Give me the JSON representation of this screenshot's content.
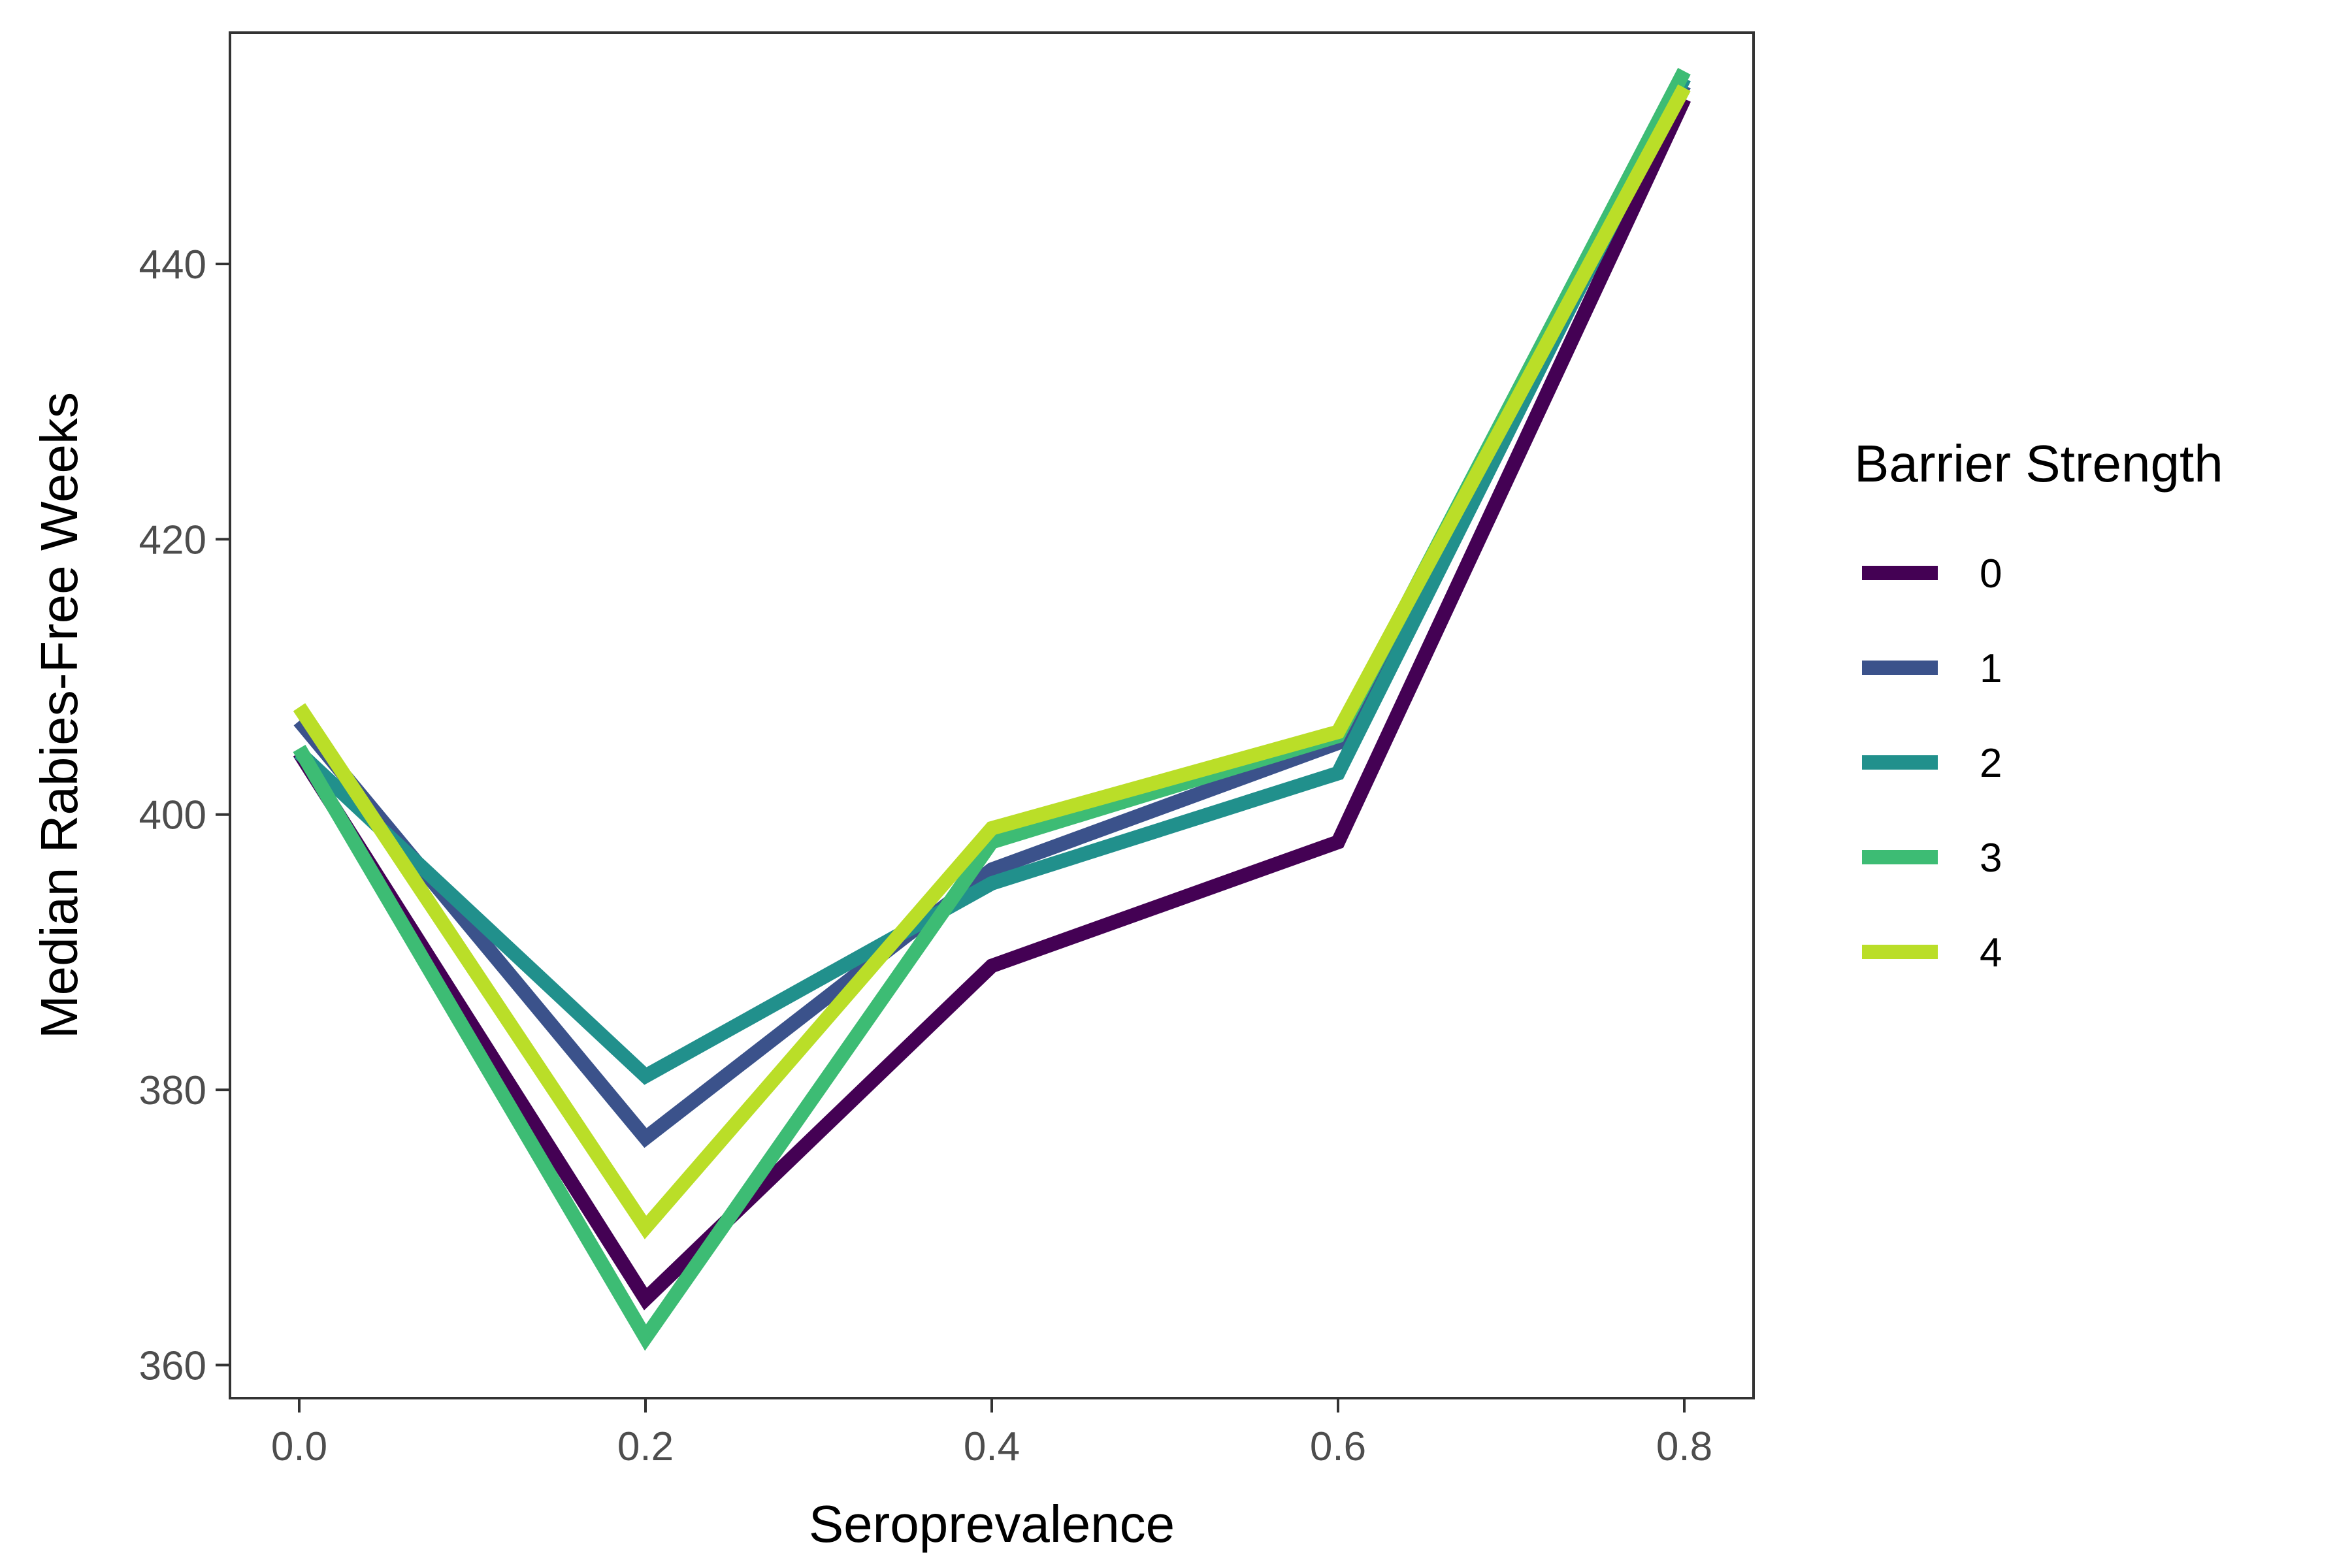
{
  "chart_data": {
    "type": "line",
    "xlabel": "Seroprevalence",
    "ylabel": "Median Rabies-Free Weeks",
    "x": [
      0.0,
      0.2,
      0.4,
      0.6,
      0.8
    ],
    "x_ticks": [
      "0.0",
      "0.2",
      "0.4",
      "0.6",
      "0.8"
    ],
    "y_ticks": [
      360,
      380,
      400,
      420,
      440
    ],
    "xlim": [
      -0.04,
      0.84
    ],
    "ylim": [
      357.6,
      456.8
    ],
    "grid": false,
    "legend": {
      "title": "Barrier Strength",
      "position": "right"
    },
    "series": [
      {
        "name": "0",
        "color": "#440154",
        "values": [
          404.5,
          364.8,
          389.0,
          398.0,
          452.0
        ]
      },
      {
        "name": "1",
        "color": "#3B528B",
        "values": [
          406.8,
          376.5,
          396.0,
          405.2,
          453.0
        ]
      },
      {
        "name": "2",
        "color": "#21908C",
        "values": [
          404.5,
          381.0,
          395.0,
          403.0,
          453.5
        ]
      },
      {
        "name": "3",
        "color": "#3DBC74",
        "values": [
          404.8,
          362.0,
          398.0,
          405.7,
          454.0
        ]
      },
      {
        "name": "4",
        "color": "#BADE28",
        "values": [
          407.8,
          370.0,
          399.0,
          406.0,
          452.8
        ]
      }
    ]
  }
}
